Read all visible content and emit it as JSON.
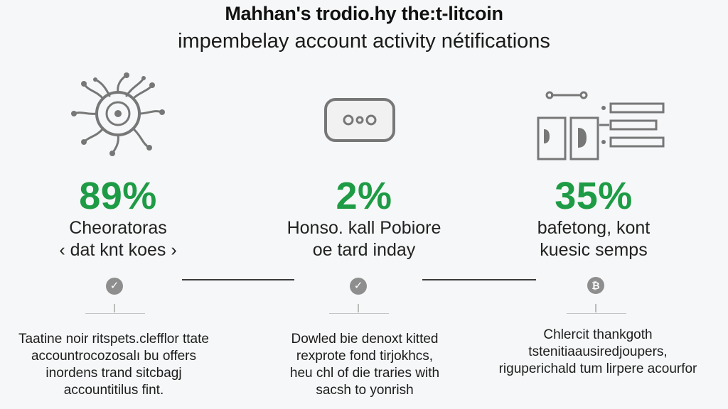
{
  "header": {
    "title": "Mahhan's trodio.hy the:t-litcoin",
    "subtitle": "impembelay account activity nétifications"
  },
  "columns": [
    {
      "icon": "virus-gear-icon",
      "percent": "89%",
      "label_lines": [
        "Cheoratoras",
        "‹ dat knt koes ›"
      ],
      "check_icon": "check-badge-icon",
      "desc_lines": [
        "Taatine noir ritspets.clefflor ttate",
        "accountrocozosalı bu offers",
        "inordens trand sitcbagj",
        "accountitilus fint."
      ]
    },
    {
      "icon": "toggle-pill-icon",
      "percent": "2%",
      "label_lines": [
        "Honso. kall Pobiore",
        "oe tard inday"
      ],
      "check_icon": "check-badge-icon",
      "desc_lines": [
        "Dowled bie denoxt kitted",
        "rexprote fond tirjokhcs,",
        "heu chl of die traries with",
        "sacsh to yonrish"
      ]
    },
    {
      "icon": "panels-sliders-icon",
      "percent": "35%",
      "label_lines": [
        "bafetong, kont",
        "kuesic semps"
      ],
      "check_icon": "bitcoin-badge-icon",
      "desc_lines": [
        "Chlercit thankgoth",
        "tstenitiaausiredjoupers,",
        "riguperichald tum lirpere acourfor"
      ]
    }
  ],
  "colors": {
    "accent": "#1e9b45",
    "text": "#1e1e1e",
    "background": "#f6f7f8"
  }
}
